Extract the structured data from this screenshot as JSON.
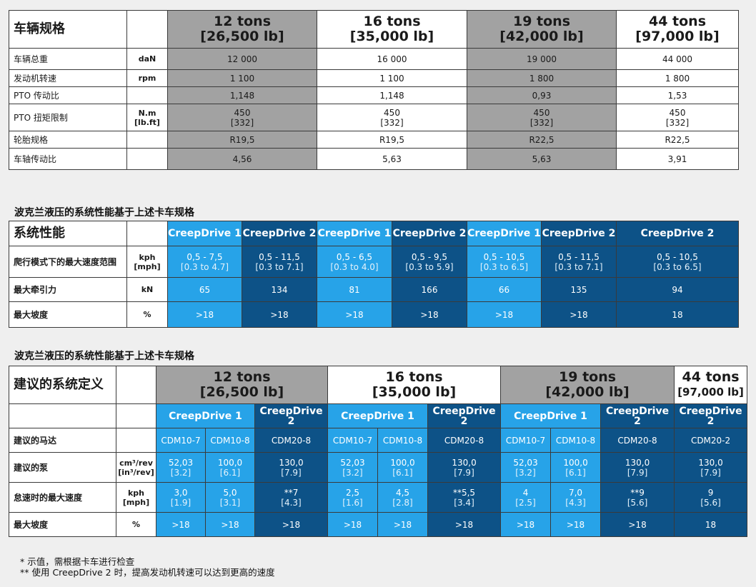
{
  "table1": {
    "title": "车辆规格",
    "columns": [
      {
        "tons": "12 tons",
        "lb": "[26,500 lb]"
      },
      {
        "tons": "16 tons",
        "lb": "[35,000 lb]"
      },
      {
        "tons": "19 tons",
        "lb": "[42,000 lb]"
      },
      {
        "tons": "44 tons",
        "lb": "[97,000 lb]"
      }
    ],
    "rows": [
      {
        "label": "车辆总重",
        "unit": "daN",
        "unit2": "",
        "values": [
          {
            "a": "12 000",
            "b": ""
          },
          {
            "a": "16 000",
            "b": ""
          },
          {
            "a": "19 000",
            "b": ""
          },
          {
            "a": "44 000",
            "b": ""
          }
        ]
      },
      {
        "label": "发动机转速",
        "unit": "rpm",
        "unit2": "",
        "values": [
          {
            "a": "1 100",
            "b": ""
          },
          {
            "a": "1 100",
            "b": ""
          },
          {
            "a": "1 800",
            "b": ""
          },
          {
            "a": "1 800",
            "b": ""
          }
        ]
      },
      {
        "label": "PTO 传动比",
        "unit": "",
        "unit2": "",
        "values": [
          {
            "a": "1,148",
            "b": ""
          },
          {
            "a": "1,148",
            "b": ""
          },
          {
            "a": "0,93",
            "b": ""
          },
          {
            "a": "1,53",
            "b": ""
          }
        ]
      },
      {
        "label": "PTO 扭矩限制",
        "unit": "N.m",
        "unit2": "[lb.ft]",
        "values": [
          {
            "a": "450",
            "b": "[332]"
          },
          {
            "a": "450",
            "b": "[332]"
          },
          {
            "a": "450",
            "b": "[332]"
          },
          {
            "a": "450",
            "b": "[332]"
          }
        ]
      },
      {
        "label": "轮胎规格",
        "unit": "",
        "unit2": "",
        "values": [
          {
            "a": "R19,5",
            "b": ""
          },
          {
            "a": "R19,5",
            "b": ""
          },
          {
            "a": "R22,5",
            "b": ""
          },
          {
            "a": "R22,5",
            "b": ""
          }
        ]
      },
      {
        "label": "车轴传动比",
        "unit": "",
        "unit2": "",
        "values": [
          {
            "a": "4,56",
            "b": ""
          },
          {
            "a": "5,63",
            "b": ""
          },
          {
            "a": "5,63",
            "b": ""
          },
          {
            "a": "3,91",
            "b": ""
          }
        ]
      }
    ]
  },
  "section2_title": "波克兰液压的系统性能基于上述卡车规格",
  "table2": {
    "title": "系统性能",
    "headers": [
      "CreepDrive 1",
      "CreepDrive 2",
      "CreepDrive 1",
      "CreepDrive 2",
      "CreepDrive 1",
      "CreepDrive 2",
      "CreepDrive 2"
    ],
    "rows": [
      {
        "label": "爬行模式下的最大速度范围",
        "unit": "kph",
        "unit2": "[mph]",
        "values": [
          {
            "a": "0,5 - 7,5",
            "b": "[0.3 to 4.7]"
          },
          {
            "a": "0,5 - 11,5",
            "b": "[0.3 to 7.1]"
          },
          {
            "a": "0,5 - 6,5",
            "b": "[0.3 to 4.0]"
          },
          {
            "a": "0,5 - 9,5",
            "b": "[0.3 to 5.9]"
          },
          {
            "a": "0,5 - 10,5",
            "b": "[0.3 to 6.5]"
          },
          {
            "a": "0,5 - 11,5",
            "b": "[0.3 to 7.1]"
          },
          {
            "a": "0,5 - 10,5",
            "b": "[0.3 to 6.5]"
          }
        ]
      },
      {
        "label": "最大牵引力",
        "unit": "kN",
        "unit2": "",
        "values": [
          {
            "a": "65",
            "b": ""
          },
          {
            "a": "134",
            "b": ""
          },
          {
            "a": "81",
            "b": ""
          },
          {
            "a": "166",
            "b": ""
          },
          {
            "a": "66",
            "b": ""
          },
          {
            "a": "135",
            "b": ""
          },
          {
            "a": "94",
            "b": ""
          }
        ]
      },
      {
        "label": "最大坡度",
        "unit": "%",
        "unit2": "",
        "values": [
          {
            "a": ">18",
            "b": ""
          },
          {
            "a": ">18",
            "b": ""
          },
          {
            "a": ">18",
            "b": ""
          },
          {
            "a": ">18",
            "b": ""
          },
          {
            "a": ">18",
            "b": ""
          },
          {
            "a": ">18",
            "b": ""
          },
          {
            "a": "18",
            "b": ""
          }
        ]
      }
    ]
  },
  "section3_title": "波克兰液压的系统性能基于上述卡车规格",
  "table3": {
    "title": "建议的系统定义",
    "columns": [
      {
        "tons": "12 tons",
        "lb": "[26,500 lb]"
      },
      {
        "tons": "16 tons",
        "lb": "[35,000 lb]"
      },
      {
        "tons": "19 tons",
        "lb": "[42,000 lb]"
      },
      {
        "tons": "44 tons",
        "lb": "[97,000 lb]"
      }
    ],
    "drives": [
      "CreepDrive 1",
      "CreepDrive 2",
      "CreepDrive 1",
      "CreepDrive 2",
      "CreepDrive 1",
      "CreepDrive 2",
      "CreepDrive 2"
    ],
    "motor_label": "建议的马达",
    "motors": [
      "CDM10-7",
      "CDM10-8",
      "CDM20-8",
      "CDM10-7",
      "CDM10-8",
      "CDM20-8",
      "CDM10-7",
      "CDM10-8",
      "CDM20-8",
      "CDM20-2"
    ],
    "rows": [
      {
        "label": "建议的泵",
        "unit": "cm³/rev",
        "unit2": "[in³/rev]",
        "values": [
          {
            "a": "52,03",
            "b": "[3.2]"
          },
          {
            "a": "100,0",
            "b": "[6.1]"
          },
          {
            "a": "130,0",
            "b": "[7.9]"
          },
          {
            "a": "52,03",
            "b": "[3.2]"
          },
          {
            "a": "100,0",
            "b": "[6.1]"
          },
          {
            "a": "130,0",
            "b": "[7.9]"
          },
          {
            "a": "52,03",
            "b": "[3.2]"
          },
          {
            "a": "100,0",
            "b": "[6.1]"
          },
          {
            "a": "130,0",
            "b": "[7.9]"
          },
          {
            "a": "130,0",
            "b": "[7.9]"
          }
        ]
      },
      {
        "label": "怠速时的最大速度",
        "unit": "kph",
        "unit2": "[mph]",
        "values": [
          {
            "a": "3,0",
            "b": "[1.9]"
          },
          {
            "a": "5,0",
            "b": "[3.1]"
          },
          {
            "a": "**7",
            "b": "[4.3]"
          },
          {
            "a": "2,5",
            "b": "[1.6]"
          },
          {
            "a": "4,5",
            "b": "[2.8]"
          },
          {
            "a": "**5,5",
            "b": "[3.4]"
          },
          {
            "a": "4",
            "b": "[2.5]"
          },
          {
            "a": "7,0",
            "b": "[4.3]"
          },
          {
            "a": "**9",
            "b": "[5.6]"
          },
          {
            "a": "9",
            "b": "[5.6]"
          }
        ]
      },
      {
        "label": "最大坡度",
        "unit": "%",
        "unit2": "",
        "values": [
          {
            "a": ">18",
            "b": ""
          },
          {
            "a": ">18",
            "b": ""
          },
          {
            "a": ">18",
            "b": ""
          },
          {
            "a": ">18",
            "b": ""
          },
          {
            "a": ">18",
            "b": ""
          },
          {
            "a": ">18",
            "b": ""
          },
          {
            "a": ">18",
            "b": ""
          },
          {
            "a": ">18",
            "b": ""
          },
          {
            "a": ">18",
            "b": ""
          },
          {
            "a": "18",
            "b": ""
          }
        ]
      }
    ]
  },
  "notes": [
    "* 示值，需根据卡车进行检查",
    "** 使用 CreepDrive 2 时，提高发动机转速可以达到更高的速度"
  ]
}
